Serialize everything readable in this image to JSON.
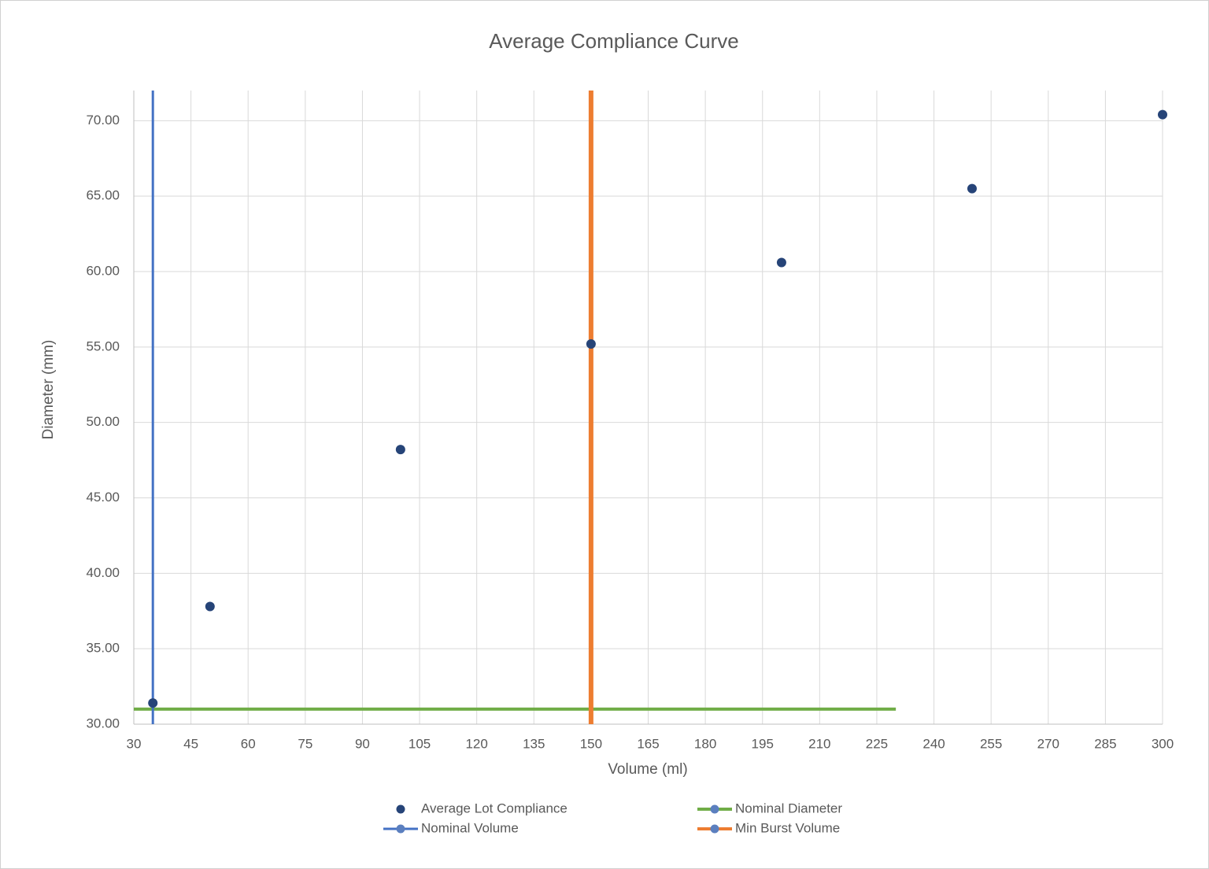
{
  "chart_data": {
    "type": "scatter",
    "title": "Average Compliance Curve",
    "x_label": "Volume (ml)",
    "y_label": "Diameter (mm)",
    "xlim": [
      30,
      300
    ],
    "xticks": [
      30,
      45,
      60,
      75,
      90,
      105,
      120,
      135,
      150,
      165,
      180,
      195,
      210,
      225,
      240,
      255,
      270,
      285,
      300
    ],
    "ylim": [
      30,
      72
    ],
    "yticks": [
      {
        "value": 30,
        "label": "30.00"
      },
      {
        "value": 35,
        "label": "35.00"
      },
      {
        "value": 40,
        "label": "40.00"
      },
      {
        "value": 45,
        "label": "45.00"
      },
      {
        "value": 50,
        "label": "50.00"
      },
      {
        "value": 55,
        "label": "55.00"
      },
      {
        "value": 60,
        "label": "60.00"
      },
      {
        "value": 65,
        "label": "65.00"
      },
      {
        "value": 70,
        "label": "70.00"
      }
    ],
    "grid": true,
    "legend": "bottom",
    "series": [
      {
        "name": "Average Lot Compliance",
        "color": "#264478",
        "mode": "markers",
        "x": [
          35,
          50,
          100,
          150,
          200,
          250,
          300
        ],
        "y": [
          31.4,
          37.8,
          48.2,
          55.2,
          60.6,
          65.5,
          70.4
        ]
      },
      {
        "name": "Nominal Diameter",
        "color": "#70ad47",
        "mode": "lines",
        "width": 4,
        "x": [
          30,
          230
        ],
        "y": [
          31,
          31
        ]
      },
      {
        "name": "Nominal Volume",
        "color": "#4472c4",
        "mode": "lines",
        "width": 3,
        "x": [
          35,
          35
        ],
        "y": [
          30,
          72
        ]
      },
      {
        "name": "Min Burst Volume",
        "color": "#ed7d31",
        "mode": "lines",
        "width": 6,
        "x": [
          150,
          150
        ],
        "y": [
          30,
          72
        ]
      }
    ]
  }
}
